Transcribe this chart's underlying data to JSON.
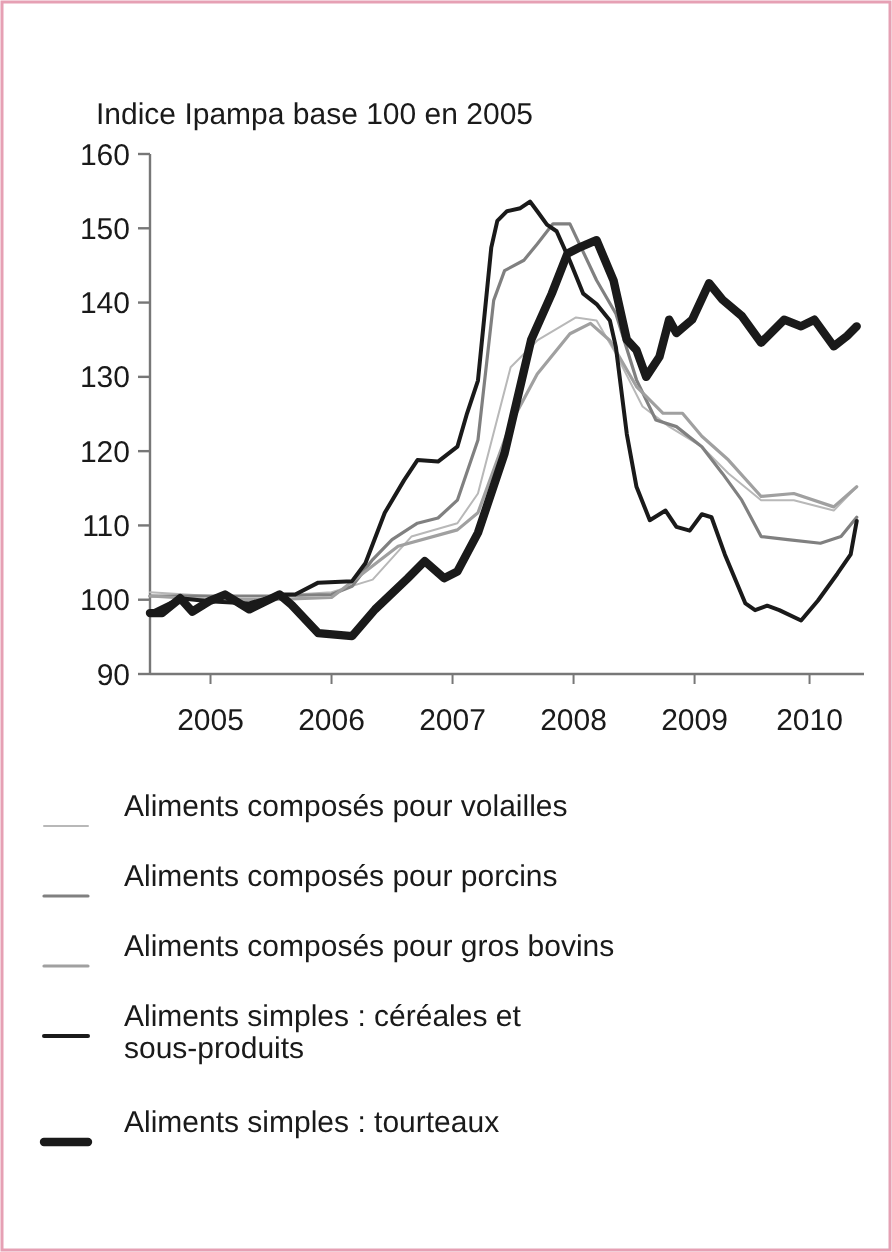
{
  "chart_data": {
    "type": "line",
    "title": "Indice Ipampa base 100 en 2005",
    "xlim": [
      2005,
      2010.9
    ],
    "xticks": [
      {
        "value": 2005.5,
        "label": "2005"
      },
      {
        "value": 2006.5,
        "label": "2006"
      },
      {
        "value": 2007.5,
        "label": "2007"
      },
      {
        "value": 2008.5,
        "label": "2008"
      },
      {
        "value": 2009.5,
        "label": "2009"
      },
      {
        "value": 2010.45,
        "label": "2010"
      }
    ],
    "ylim": [
      90,
      160
    ],
    "yticks": [
      90,
      100,
      110,
      120,
      130,
      140,
      150,
      160
    ],
    "grid": false,
    "legend": "bottom",
    "marker": "none",
    "line_style": "solid",
    "series": [
      {
        "name": "Aliments composés pour volailles",
        "color": "#b8b8b8",
        "x": [
          2005,
          2005.5,
          2006,
          2006.5,
          2006.84,
          2007.16,
          2007.54,
          2007.71,
          2007.98,
          2008.2,
          2008.52,
          2008.69,
          2008.85,
          2009.07,
          2009.29,
          2009.56,
          2009.78,
          2010.05,
          2010.32,
          2010.65,
          2010.84
        ],
        "values": [
          101,
          100.5,
          100.5,
          101,
          102.7,
          108.5,
          110.3,
          114.3,
          131.3,
          134.9,
          138,
          137.6,
          133.1,
          126,
          123.3,
          120.6,
          117,
          113.4,
          113.4,
          112,
          115.2
        ]
      },
      {
        "name": "Aliments composés pour porcins",
        "color": "#808080",
        "x": [
          2005,
          2005.5,
          2006,
          2006.5,
          2006.67,
          2006.84,
          2007,
          2007.21,
          2007.38,
          2007.54,
          2007.71,
          2007.84,
          2007.93,
          2008.09,
          2008.2,
          2008.33,
          2008.47,
          2008.56,
          2008.69,
          2008.85,
          2009.02,
          2009.18,
          2009.35,
          2009.56,
          2009.73,
          2009.89,
          2010.05,
          2010.27,
          2010.54,
          2010.71,
          2010.84
        ],
        "values": [
          100.5,
          100.5,
          100.5,
          100.7,
          101.8,
          105.4,
          108.1,
          110.3,
          111,
          113.4,
          121.5,
          140.3,
          144.3,
          145.7,
          147.9,
          150.6,
          150.6,
          147.5,
          143,
          138.5,
          129.6,
          124.2,
          123.3,
          120.6,
          117,
          113.4,
          108.5,
          108.1,
          107.6,
          108.5,
          111.1
        ]
      },
      {
        "name": "Aliments composés pour gros bovins",
        "color": "#a0a0a0",
        "x": [
          2005,
          2005.5,
          2006,
          2006.5,
          2007.05,
          2007.54,
          2007.71,
          2007.98,
          2008.2,
          2008.47,
          2008.64,
          2008.8,
          2009.02,
          2009.24,
          2009.4,
          2009.56,
          2009.78,
          2010.05,
          2010.32,
          2010.65,
          2010.84
        ],
        "values": [
          100.5,
          100,
          100,
          100.3,
          107.2,
          109.4,
          111.7,
          123.7,
          130.4,
          135.8,
          137.2,
          134.9,
          128.7,
          125.1,
          125.1,
          122,
          118.8,
          113.9,
          114.3,
          112.5,
          115.2
        ]
      },
      {
        "name": "Aliments simples : céréales et sous-produits",
        "color": "#1a1a1a",
        "x": [
          2005,
          2005.25,
          2005.49,
          2005.82,
          2006.07,
          2006.2,
          2006.39,
          2006.67,
          2006.78,
          2006.94,
          2007.1,
          2007.21,
          2007.38,
          2007.54,
          2007.62,
          2007.71,
          2007.82,
          2007.87,
          2007.95,
          2008.06,
          2008.14,
          2008.2,
          2008.28,
          2008.36,
          2008.47,
          2008.58,
          2008.69,
          2008.8,
          2008.85,
          2008.94,
          2009.02,
          2009.13,
          2009.26,
          2009.35,
          2009.46,
          2009.56,
          2009.64,
          2009.75,
          2009.92,
          2010,
          2010.1,
          2010.2,
          2010.38,
          2010.52,
          2010.68,
          2010.79,
          2010.84
        ],
        "values": [
          98.2,
          100.2,
          99.8,
          99.5,
          100.7,
          100.7,
          102.3,
          102.5,
          104.9,
          111.7,
          116.1,
          118.8,
          118.6,
          120.6,
          125.1,
          129.5,
          147.4,
          151,
          152.3,
          152.7,
          153.6,
          152.3,
          150.5,
          149.6,
          145.6,
          141.2,
          139.8,
          137.6,
          134,
          122.3,
          115.2,
          110.7,
          112,
          109.8,
          109.3,
          111.5,
          111.1,
          106.1,
          99.5,
          98.6,
          99.2,
          98.6,
          97.2,
          99.9,
          103.5,
          106.1,
          110.6
        ]
      },
      {
        "name": "Aliments simples : tourteaux",
        "color": "#1a1a1a",
        "x": [
          2005,
          2005.1,
          2005.25,
          2005.35,
          2005.49,
          2005.62,
          2005.82,
          2006.07,
          2006.17,
          2006.39,
          2006.67,
          2006.86,
          2007.13,
          2007.27,
          2007.43,
          2007.54,
          2007.71,
          2007.93,
          2008.15,
          2008.32,
          2008.45,
          2008.56,
          2008.69,
          2008.83,
          2008.94,
          2009.02,
          2009.1,
          2009.21,
          2009.29,
          2009.35,
          2009.48,
          2009.62,
          2009.73,
          2009.89,
          2010.05,
          2010.24,
          2010.38,
          2010.49,
          2010.65,
          2010.76,
          2010.84
        ],
        "values": [
          98.2,
          98.2,
          100.2,
          98.4,
          99.8,
          100.7,
          98.7,
          100.7,
          99.3,
          95.5,
          95.1,
          98.7,
          102.9,
          105.2,
          102.9,
          103.8,
          109,
          119.7,
          135,
          141.2,
          146.6,
          147.5,
          148.4,
          143,
          135,
          133.6,
          130,
          132.7,
          137.7,
          135.9,
          137.7,
          142.6,
          140.4,
          138.2,
          134.6,
          137.7,
          136.8,
          137.7,
          134.1,
          135.5,
          136.8
        ]
      }
    ]
  }
}
